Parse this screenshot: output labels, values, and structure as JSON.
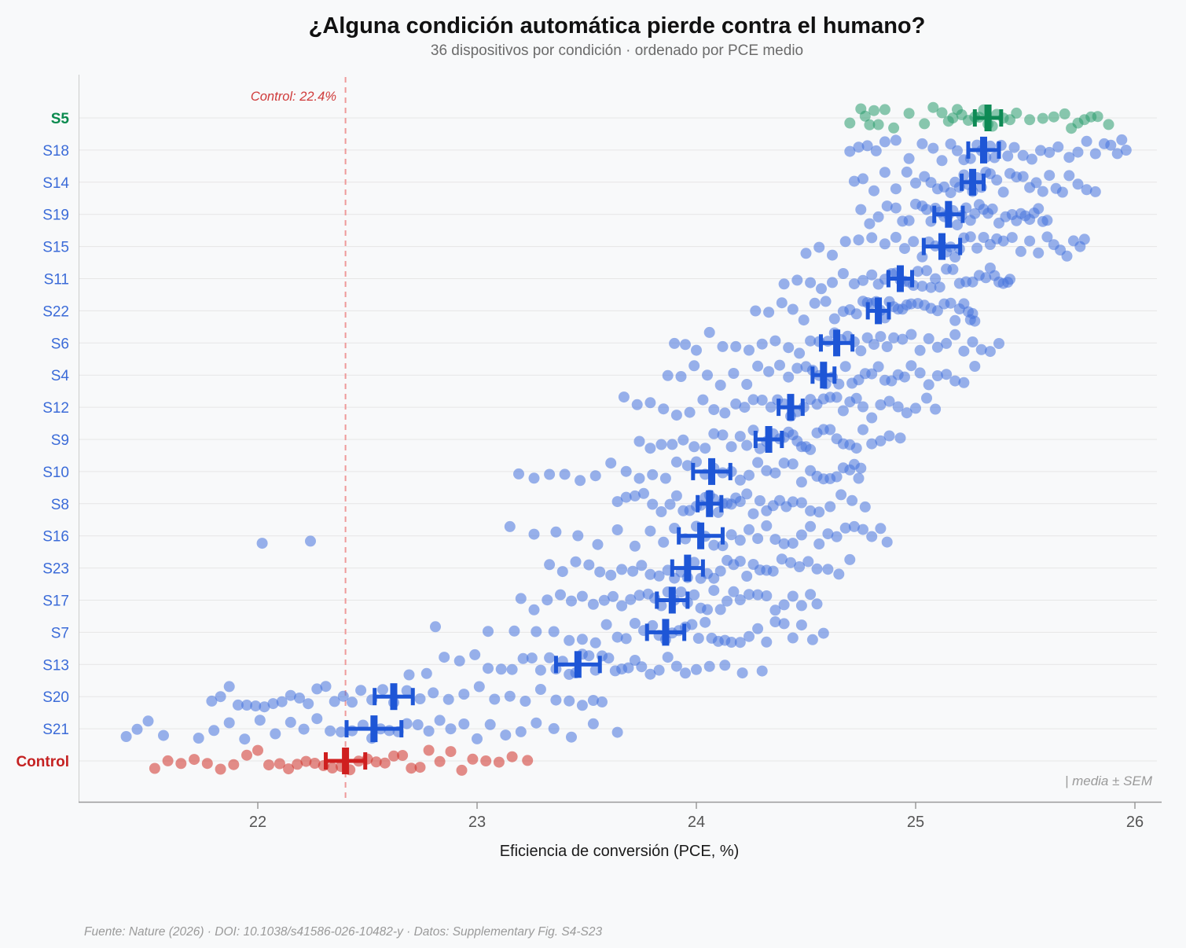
{
  "title": "¿Alguna condición automática pierde contra el humano?",
  "subtitle": "36 dispositivos por condición · ordenado por PCE medio",
  "annotation": "Control: 22.4%",
  "note": "| media ± SEM",
  "footer": "Fuente: Nature (2026) · DOI: 10.1038/s41586-026-10482-y · Datos: Supplementary Fig. S4-S23",
  "chart_data": {
    "type": "scatter",
    "xlabel": "Eficiencia de conversión (PCE, %)",
    "x_ticks": [
      22,
      23,
      24,
      25,
      26
    ],
    "x_range": [
      21.2,
      26.1
    ],
    "grid": "horizontal-per-category",
    "legend_position": "bottom-right-inside",
    "control_line": {
      "value": 22.4,
      "style": "dashed"
    },
    "colors": {
      "best": {
        "dot": "#2a9d6e",
        "bar": "#0e8a55",
        "label": "#0a8a4e"
      },
      "auto": {
        "dot": "#4672dc",
        "bar": "#1e56d6",
        "label": "#3b6bd8"
      },
      "control": {
        "dot": "#cf3228",
        "bar": "#cf1f1f",
        "label": "#c52222"
      }
    },
    "rows": [
      {
        "label": "S5",
        "group": "best",
        "mean": 25.33,
        "sem": 0.06,
        "points": [
          24.7,
          24.75,
          24.77,
          24.79,
          24.81,
          24.83,
          24.86,
          24.9,
          24.97,
          25.04,
          25.08,
          25.12,
          25.15,
          25.17,
          25.19,
          25.21,
          25.24,
          25.27,
          25.29,
          25.31,
          25.33,
          25.35,
          25.37,
          25.4,
          25.43,
          25.46,
          25.52,
          25.58,
          25.63,
          25.68,
          25.71,
          25.74,
          25.77,
          25.8,
          25.83,
          25.88
        ]
      },
      {
        "label": "S18",
        "group": "auto",
        "mean": 25.31,
        "sem": 0.07,
        "points": [
          24.7,
          24.74,
          24.78,
          24.82,
          24.86,
          24.91,
          24.97,
          25.03,
          25.08,
          25.12,
          25.16,
          25.19,
          25.22,
          25.25,
          25.28,
          25.3,
          25.32,
          25.34,
          25.36,
          25.39,
          25.42,
          25.45,
          25.49,
          25.53,
          25.57,
          25.61,
          25.65,
          25.7,
          25.74,
          25.78,
          25.82,
          25.86,
          25.89,
          25.92,
          25.94,
          25.96
        ]
      },
      {
        "label": "S14",
        "group": "auto",
        "mean": 25.26,
        "sem": 0.05,
        "points": [
          24.72,
          24.76,
          24.81,
          24.86,
          24.91,
          24.96,
          25.0,
          25.04,
          25.07,
          25.1,
          25.13,
          25.16,
          25.18,
          25.2,
          25.22,
          25.24,
          25.26,
          25.28,
          25.3,
          25.32,
          25.34,
          25.37,
          25.4,
          25.43,
          25.46,
          25.49,
          25.52,
          25.55,
          25.58,
          25.61,
          25.64,
          25.67,
          25.7,
          25.74,
          25.78,
          25.82
        ]
      },
      {
        "label": "S19",
        "group": "auto",
        "mean": 25.15,
        "sem": 0.065,
        "points": [
          24.75,
          24.79,
          24.83,
          24.87,
          24.91,
          24.94,
          24.97,
          25.0,
          25.03,
          25.05,
          25.07,
          25.09,
          25.11,
          25.13,
          25.15,
          25.17,
          25.19,
          25.21,
          25.23,
          25.25,
          25.27,
          25.29,
          25.31,
          25.33,
          25.35,
          25.38,
          25.41,
          25.44,
          25.46,
          25.48,
          25.5,
          25.52,
          25.54,
          25.56,
          25.58,
          25.6
        ]
      },
      {
        "label": "S15",
        "group": "auto",
        "mean": 25.12,
        "sem": 0.083,
        "points": [
          24.5,
          24.56,
          24.62,
          24.68,
          24.74,
          24.8,
          24.86,
          24.91,
          24.95,
          24.99,
          25.03,
          25.06,
          25.09,
          25.12,
          25.14,
          25.16,
          25.18,
          25.2,
          25.22,
          25.25,
          25.28,
          25.31,
          25.34,
          25.37,
          25.4,
          25.44,
          25.48,
          25.52,
          25.56,
          25.6,
          25.63,
          25.66,
          25.69,
          25.72,
          25.75,
          25.77
        ]
      },
      {
        "label": "S11",
        "group": "auto",
        "mean": 24.93,
        "sem": 0.054,
        "points": [
          24.4,
          24.46,
          24.52,
          24.57,
          24.62,
          24.67,
          24.72,
          24.76,
          24.8,
          24.83,
          24.86,
          24.89,
          24.91,
          24.93,
          24.95,
          24.97,
          24.99,
          25.01,
          25.03,
          25.05,
          25.07,
          25.09,
          25.11,
          25.14,
          25.17,
          25.2,
          25.23,
          25.26,
          25.29,
          25.32,
          25.34,
          25.36,
          25.38,
          25.4,
          25.42,
          25.43
        ]
      },
      {
        "label": "S22",
        "group": "auto",
        "mean": 24.83,
        "sem": 0.048,
        "points": [
          24.27,
          24.33,
          24.39,
          24.44,
          24.49,
          24.54,
          24.59,
          24.63,
          24.67,
          24.7,
          24.73,
          24.76,
          24.78,
          24.8,
          24.82,
          24.84,
          24.86,
          24.88,
          24.9,
          24.92,
          24.94,
          24.96,
          24.98,
          25.01,
          25.04,
          25.07,
          25.1,
          25.13,
          25.16,
          25.18,
          25.2,
          25.22,
          25.24,
          25.25,
          25.26,
          25.27
        ]
      },
      {
        "label": "S6",
        "group": "auto",
        "mean": 24.64,
        "sem": 0.072,
        "points": [
          23.9,
          23.95,
          24.0,
          24.06,
          24.12,
          24.18,
          24.24,
          24.3,
          24.36,
          24.42,
          24.47,
          24.52,
          24.56,
          24.6,
          24.63,
          24.66,
          24.69,
          24.72,
          24.75,
          24.78,
          24.81,
          24.84,
          24.87,
          24.9,
          24.94,
          24.98,
          25.02,
          25.06,
          25.1,
          25.14,
          25.18,
          25.22,
          25.26,
          25.3,
          25.34,
          25.38
        ]
      },
      {
        "label": "S4",
        "group": "auto",
        "mean": 24.58,
        "sem": 0.05,
        "points": [
          23.87,
          23.93,
          23.99,
          24.05,
          24.11,
          24.17,
          24.23,
          24.28,
          24.33,
          24.38,
          24.42,
          24.46,
          24.5,
          24.53,
          24.56,
          24.59,
          24.62,
          24.65,
          24.68,
          24.71,
          24.74,
          24.77,
          24.8,
          24.83,
          24.86,
          24.89,
          24.92,
          24.95,
          24.98,
          25.02,
          25.06,
          25.1,
          25.14,
          25.18,
          25.22,
          25.27
        ]
      },
      {
        "label": "S12",
        "group": "auto",
        "mean": 24.43,
        "sem": 0.055,
        "points": [
          23.67,
          23.73,
          23.79,
          23.85,
          23.91,
          23.97,
          24.03,
          24.08,
          24.13,
          24.18,
          24.22,
          24.26,
          24.3,
          24.34,
          24.37,
          24.4,
          24.43,
          24.46,
          24.49,
          24.52,
          24.55,
          24.58,
          24.61,
          24.64,
          24.67,
          24.7,
          24.73,
          24.76,
          24.8,
          24.84,
          24.88,
          24.92,
          24.96,
          25.0,
          25.05,
          25.09
        ]
      },
      {
        "label": "S9",
        "group": "auto",
        "mean": 24.33,
        "sem": 0.06,
        "points": [
          23.74,
          23.79,
          23.84,
          23.89,
          23.94,
          23.99,
          24.04,
          24.08,
          24.12,
          24.16,
          24.2,
          24.23,
          24.26,
          24.29,
          24.32,
          24.35,
          24.38,
          24.4,
          24.42,
          24.44,
          24.46,
          24.48,
          24.5,
          24.52,
          24.55,
          24.58,
          24.61,
          24.64,
          24.67,
          24.7,
          24.73,
          24.76,
          24.8,
          24.84,
          24.88,
          24.93
        ]
      },
      {
        "label": "S10",
        "group": "auto",
        "mean": 24.07,
        "sem": 0.085,
        "points": [
          23.19,
          23.26,
          23.33,
          23.4,
          23.47,
          23.54,
          23.61,
          23.68,
          23.74,
          23.8,
          23.86,
          23.91,
          23.96,
          24.0,
          24.04,
          24.08,
          24.12,
          24.16,
          24.2,
          24.24,
          24.28,
          24.32,
          24.36,
          24.4,
          24.44,
          24.48,
          24.52,
          24.55,
          24.58,
          24.61,
          24.64,
          24.67,
          24.7,
          24.72,
          24.74,
          24.75
        ]
      },
      {
        "label": "S8",
        "group": "auto",
        "mean": 24.06,
        "sem": 0.054,
        "points": [
          23.64,
          23.68,
          23.72,
          23.76,
          23.8,
          23.84,
          23.88,
          23.91,
          23.94,
          23.97,
          24.0,
          24.02,
          24.04,
          24.06,
          24.08,
          24.1,
          24.12,
          24.14,
          24.16,
          24.18,
          24.2,
          24.23,
          24.26,
          24.29,
          24.32,
          24.35,
          24.38,
          24.41,
          24.44,
          24.48,
          24.52,
          24.56,
          24.61,
          24.66,
          24.71,
          24.77
        ]
      },
      {
        "label": "S16",
        "group": "auto",
        "mean": 24.02,
        "sem": 0.1,
        "points": [
          22.02,
          22.24,
          23.15,
          23.26,
          23.36,
          23.46,
          23.55,
          23.64,
          23.72,
          23.79,
          23.85,
          23.9,
          23.95,
          24.0,
          24.04,
          24.08,
          24.12,
          24.16,
          24.2,
          24.24,
          24.28,
          24.32,
          24.36,
          24.4,
          24.44,
          24.48,
          24.52,
          24.56,
          24.6,
          24.64,
          24.68,
          24.72,
          24.76,
          24.8,
          24.84,
          24.87
        ]
      },
      {
        "label": "S23",
        "group": "auto",
        "mean": 23.96,
        "sem": 0.07,
        "points": [
          23.33,
          23.39,
          23.45,
          23.51,
          23.56,
          23.61,
          23.66,
          23.71,
          23.75,
          23.79,
          23.83,
          23.87,
          23.9,
          23.93,
          23.96,
          23.99,
          24.02,
          24.05,
          24.08,
          24.11,
          24.14,
          24.17,
          24.2,
          24.23,
          24.26,
          24.29,
          24.32,
          24.35,
          24.39,
          24.43,
          24.47,
          24.51,
          24.55,
          24.6,
          24.65,
          24.7
        ]
      },
      {
        "label": "S17",
        "group": "auto",
        "mean": 23.89,
        "sem": 0.07,
        "points": [
          23.2,
          23.26,
          23.32,
          23.38,
          23.43,
          23.48,
          23.53,
          23.58,
          23.62,
          23.66,
          23.7,
          23.74,
          23.78,
          23.81,
          23.84,
          23.87,
          23.9,
          23.93,
          23.96,
          23.99,
          24.02,
          24.05,
          24.08,
          24.11,
          24.14,
          24.17,
          24.2,
          24.24,
          24.28,
          24.32,
          24.36,
          24.4,
          24.44,
          24.48,
          24.52,
          24.55
        ]
      },
      {
        "label": "S7",
        "group": "auto",
        "mean": 23.86,
        "sem": 0.085,
        "points": [
          22.81,
          23.05,
          23.17,
          23.27,
          23.35,
          23.42,
          23.48,
          23.54,
          23.59,
          23.64,
          23.68,
          23.72,
          23.76,
          23.8,
          23.83,
          23.86,
          23.89,
          23.92,
          23.95,
          23.98,
          24.01,
          24.04,
          24.07,
          24.1,
          24.13,
          24.16,
          24.2,
          24.24,
          24.28,
          24.32,
          24.36,
          24.4,
          24.44,
          24.48,
          24.53,
          24.58
        ]
      },
      {
        "label": "S13",
        "group": "auto",
        "mean": 23.46,
        "sem": 0.1,
        "points": [
          22.69,
          22.77,
          22.85,
          22.92,
          22.99,
          23.05,
          23.11,
          23.16,
          23.21,
          23.25,
          23.29,
          23.33,
          23.36,
          23.39,
          23.42,
          23.45,
          23.48,
          23.51,
          23.54,
          23.57,
          23.6,
          23.63,
          23.66,
          23.69,
          23.72,
          23.75,
          23.79,
          23.83,
          23.87,
          23.91,
          23.95,
          24.0,
          24.06,
          24.13,
          24.21,
          24.3
        ]
      },
      {
        "label": "S20",
        "group": "auto",
        "mean": 22.62,
        "sem": 0.087,
        "points": [
          21.79,
          21.83,
          21.87,
          21.91,
          21.95,
          21.99,
          22.03,
          22.07,
          22.11,
          22.15,
          22.19,
          22.23,
          22.27,
          22.31,
          22.35,
          22.39,
          22.43,
          22.47,
          22.52,
          22.57,
          22.62,
          22.68,
          22.74,
          22.8,
          22.87,
          22.94,
          23.01,
          23.08,
          23.15,
          23.22,
          23.29,
          23.36,
          23.42,
          23.48,
          23.53,
          23.57
        ]
      },
      {
        "label": "S21",
        "group": "auto",
        "mean": 22.53,
        "sem": 0.125,
        "points": [
          21.4,
          21.45,
          21.5,
          21.57,
          21.73,
          21.8,
          21.87,
          21.94,
          22.01,
          22.08,
          22.15,
          22.21,
          22.27,
          22.33,
          22.38,
          22.43,
          22.48,
          22.52,
          22.56,
          22.6,
          22.64,
          22.68,
          22.73,
          22.78,
          22.83,
          22.88,
          22.94,
          23.0,
          23.06,
          23.13,
          23.2,
          23.27,
          23.35,
          23.43,
          23.53,
          23.64
        ]
      },
      {
        "label": "Control",
        "group": "control",
        "mean": 22.4,
        "sem": 0.09,
        "points": [
          21.53,
          21.59,
          21.65,
          21.71,
          21.77,
          21.83,
          21.89,
          21.95,
          22.0,
          22.05,
          22.1,
          22.14,
          22.18,
          22.22,
          22.26,
          22.3,
          22.34,
          22.38,
          22.42,
          22.46,
          22.5,
          22.54,
          22.58,
          22.62,
          22.66,
          22.7,
          22.74,
          22.78,
          22.83,
          22.88,
          22.93,
          22.98,
          23.04,
          23.1,
          23.16,
          23.23
        ]
      }
    ]
  }
}
